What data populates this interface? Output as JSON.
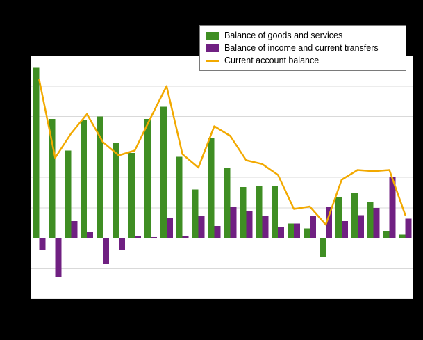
{
  "colors": {
    "background": "#000000",
    "plot_background": "#ffffff",
    "gridline": "#d9d9d9",
    "zero_line": "#b3b3b3",
    "legend_border": "#7a7a7a"
  },
  "chart_data": {
    "type": "bar",
    "title": "",
    "x": [
      1,
      2,
      3,
      4,
      5,
      6,
      7,
      8,
      9,
      10,
      11,
      12,
      13,
      14,
      15,
      16,
      17,
      18,
      19,
      20,
      21,
      22,
      23,
      24
    ],
    "series": [
      {
        "name": "Balance of goods and services",
        "type": "bar",
        "color": "#3f8e23",
        "values": [
          140,
          98,
          72,
          97,
          100,
          78,
          70,
          98,
          108,
          67,
          40,
          82,
          58,
          42,
          43,
          43,
          12,
          8,
          -15,
          34,
          37,
          30,
          6,
          3
        ]
      },
      {
        "name": "Balance of income and current transfers",
        "type": "bar",
        "color": "#702082",
        "values": [
          -10,
          -32,
          14,
          5,
          -21,
          -10,
          2,
          1,
          17,
          2,
          18,
          10,
          26,
          22,
          18,
          9,
          12,
          18,
          26,
          14,
          19,
          25,
          50,
          16
        ]
      },
      {
        "name": "Current account balance",
        "type": "line",
        "color": "#f2a900",
        "values": [
          130,
          66,
          86,
          102,
          79,
          68,
          72,
          99,
          125,
          69,
          58,
          92,
          84,
          64,
          61,
          52,
          24,
          26,
          11,
          48,
          56,
          55,
          56,
          19
        ]
      }
    ],
    "ylim": [
      -50,
      150
    ],
    "ytick_interval": 25,
    "grid": true,
    "legend_position": "top",
    "xticks_visible": false,
    "yticks_visible": false
  }
}
